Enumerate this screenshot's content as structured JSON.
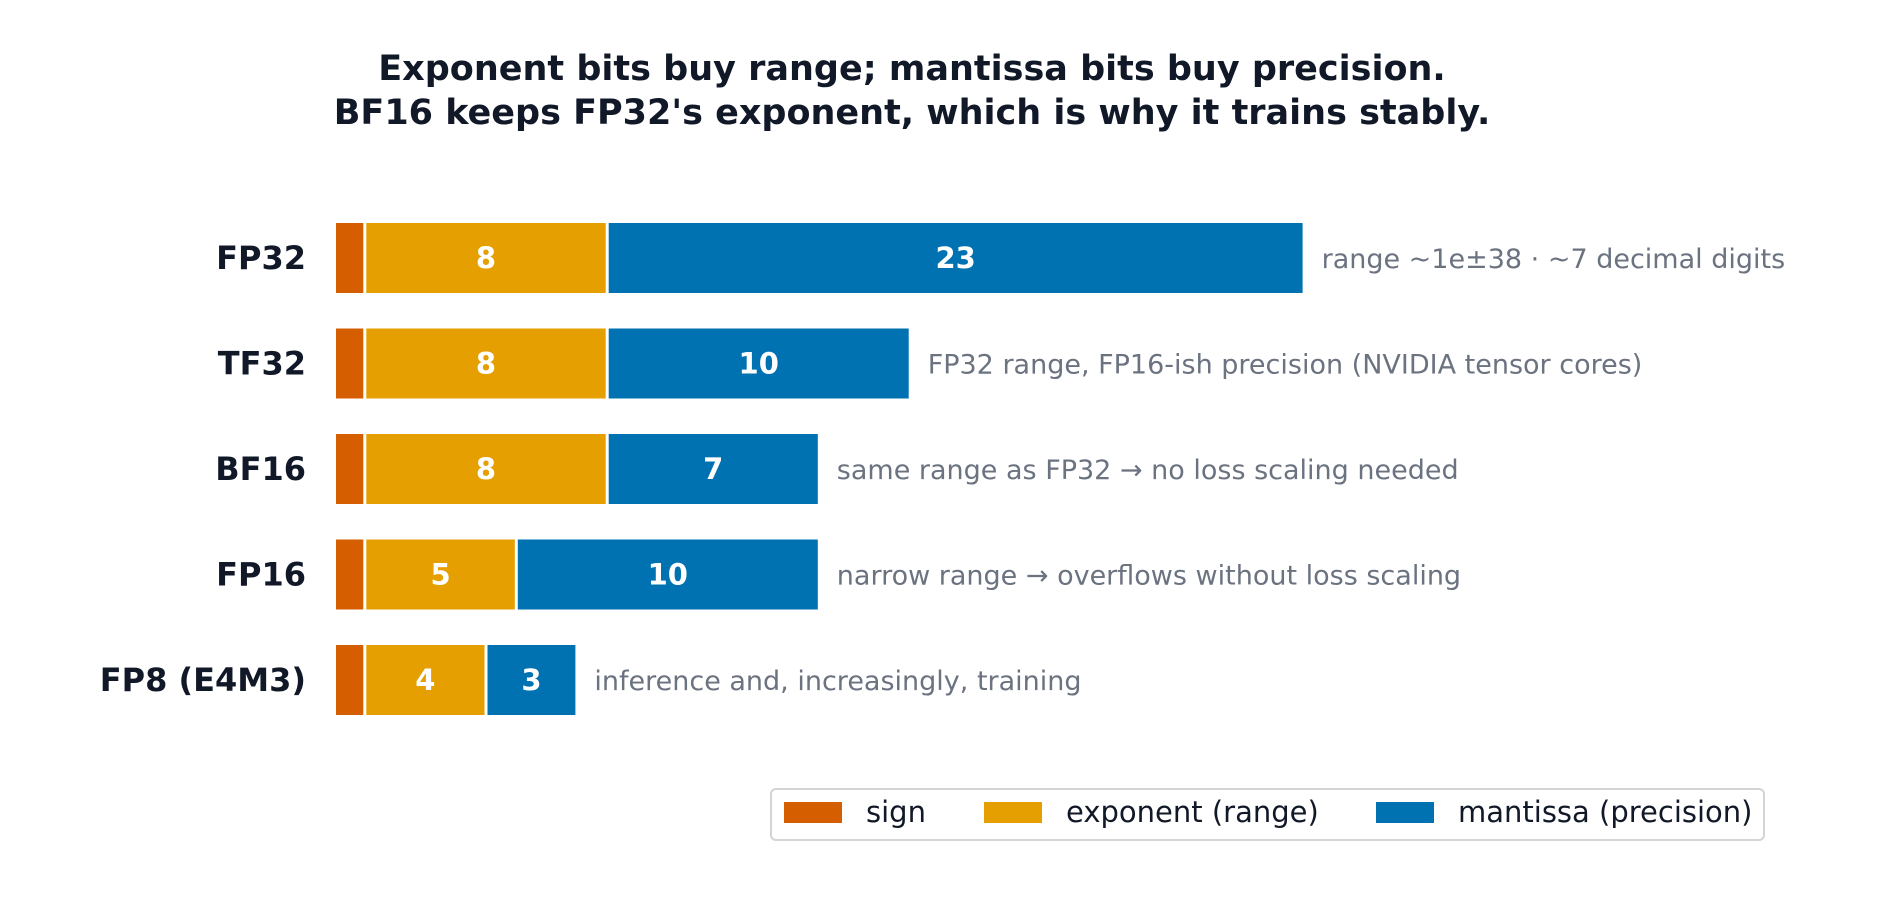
{
  "chart_data": {
    "type": "bar",
    "stacked": true,
    "orientation": "horizontal",
    "title_lines": [
      "Exponent bits buy range; mantissa bits buy precision.",
      "BF16 keeps FP32's exponent, which is why it trains stably."
    ],
    "categories": [
      "FP32",
      "TF32",
      "BF16",
      "FP16",
      "FP8 (E4M3)"
    ],
    "series": [
      {
        "name": "sign",
        "color": "#d55e00",
        "values": [
          1,
          1,
          1,
          1,
          1
        ]
      },
      {
        "name": "exponent (range)",
        "color": "#e69f00",
        "values": [
          8,
          8,
          8,
          5,
          4
        ]
      },
      {
        "name": "mantissa (precision)",
        "color": "#0072b2",
        "values": [
          23,
          10,
          7,
          10,
          3
        ]
      }
    ],
    "segment_labels": [
      [
        "",
        "8",
        "23"
      ],
      [
        "",
        "8",
        "10"
      ],
      [
        "",
        "8",
        "7"
      ],
      [
        "",
        "5",
        "10"
      ],
      [
        "",
        "4",
        "3"
      ]
    ],
    "annotations": [
      "range ~1e±38   ·  ~7 decimal digits",
      "FP32 range, FP16-ish precision (NVIDIA tensor cores)",
      "same range as FP32 → no loss scaling needed",
      "narrow range → overflows without loss scaling",
      "inference and, increasingly, training"
    ],
    "legend_position": "bottom-right",
    "grid": false
  }
}
